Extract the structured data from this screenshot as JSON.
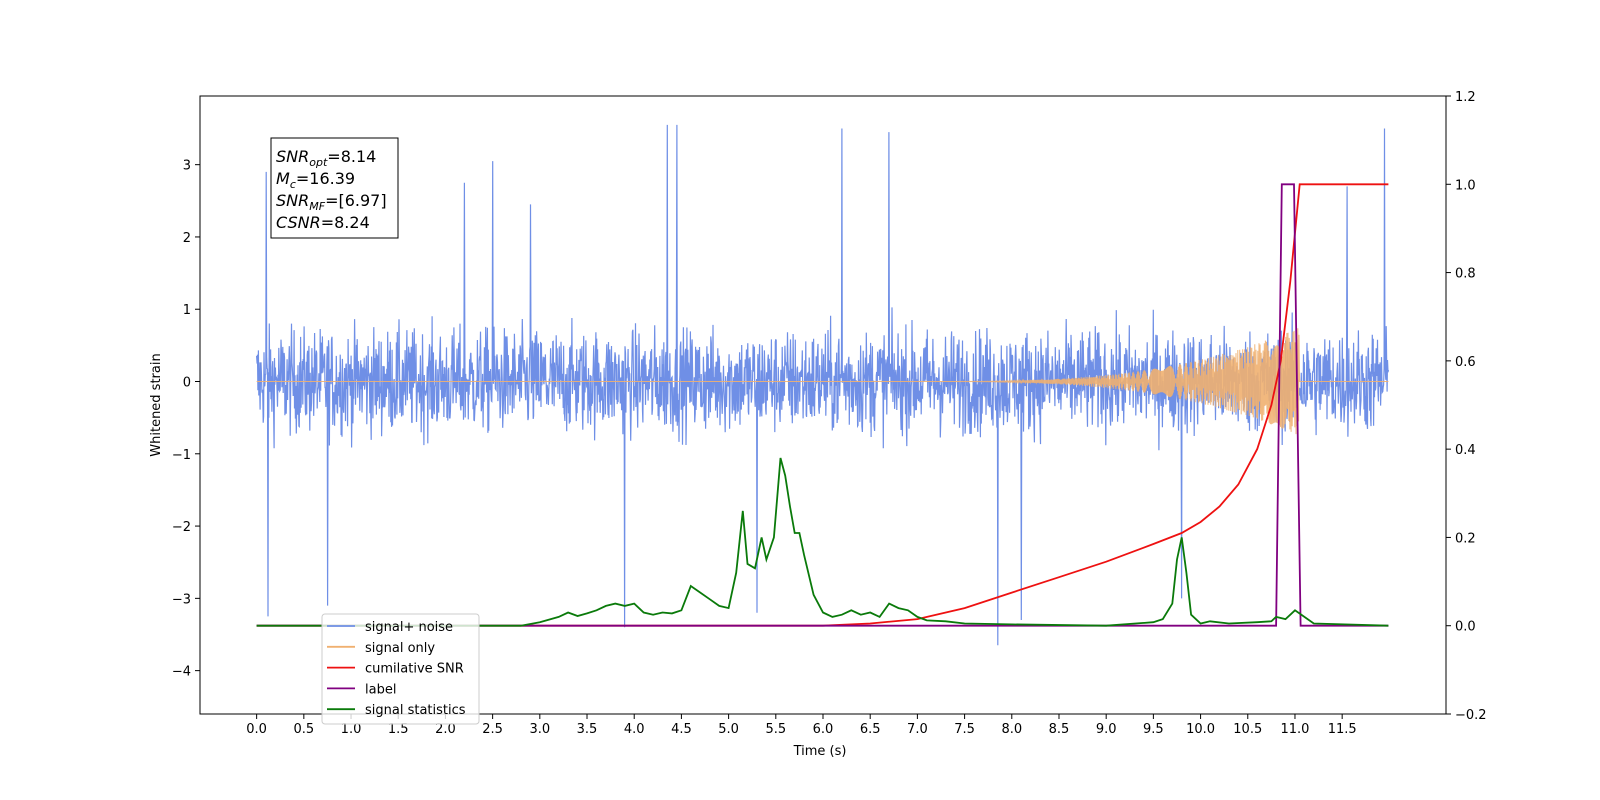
{
  "chart_data": {
    "type": "line",
    "xlabel": "Time (s)",
    "ylabel": "Whitened strain",
    "xlim": [
      -0.6,
      12.6
    ],
    "ylim": [
      -4.6,
      3.95
    ],
    "y2lim": [
      -0.2,
      1.2
    ],
    "x_ticks": [
      0.0,
      0.5,
      1.0,
      1.5,
      2.0,
      2.5,
      3.0,
      3.5,
      4.0,
      4.5,
      5.0,
      5.5,
      6.0,
      6.5,
      7.0,
      7.5,
      8.0,
      8.5,
      9.0,
      9.5,
      10.0,
      10.5,
      11.0,
      11.5
    ],
    "x_tick_labels": [
      "0.0",
      "0.5",
      "1.0",
      "1.5",
      "2.0",
      "2.5",
      "3.0",
      "3.5",
      "4.0",
      "4.5",
      "5.0",
      "5.5",
      "6.0",
      "6.5",
      "7.0",
      "7.5",
      "8.0",
      "8.5",
      "9.0",
      "9.5",
      "10.0",
      "10.5",
      "11.0",
      "11.5"
    ],
    "y_ticks": [
      3,
      2,
      1,
      0,
      -1,
      -2,
      -3,
      -4
    ],
    "y_tick_labels": [
      "3",
      "2",
      "1",
      "0",
      "−1",
      "−2",
      "−3",
      "−4"
    ],
    "y2_ticks": [
      1.2,
      1.0,
      0.8,
      0.6,
      0.4,
      0.2,
      0.0,
      -0.2
    ],
    "y2_tick_labels": [
      "1.2",
      "1.0",
      "0.8",
      "0.6",
      "0.4",
      "0.2",
      "0.0",
      "−0.2"
    ],
    "grid": false,
    "legend_position": "lower-left",
    "annotation": {
      "lines": [
        {
          "base": "SNR",
          "sub": "opt",
          "value": "=8.14"
        },
        {
          "base": "M",
          "sub": "c",
          "value": "=16.39"
        },
        {
          "base": "SNR",
          "sub": "MF",
          "value": "=[6.97]"
        },
        {
          "base": "CSNR",
          "sub": "",
          "value": "=8.24"
        }
      ]
    },
    "series": [
      {
        "name": "signal+ noise",
        "axis": "left",
        "color": "#6f8fe6",
        "noise_envelope": {
          "x_range": [
            0.0,
            11.99
          ],
          "typical_range": [
            -1.8,
            1.6
          ],
          "spikes": [
            [
              0.1,
              2.9
            ],
            [
              0.12,
              -3.25
            ],
            [
              0.75,
              -3.1
            ],
            [
              2.2,
              2.75
            ],
            [
              2.5,
              3.05
            ],
            [
              2.9,
              2.45
            ],
            [
              3.9,
              -3.4
            ],
            [
              4.35,
              3.55
            ],
            [
              4.45,
              3.55
            ],
            [
              5.3,
              -3.2
            ],
            [
              6.2,
              3.5
            ],
            [
              6.7,
              3.45
            ],
            [
              7.85,
              -3.65
            ],
            [
              8.1,
              -3.3
            ],
            [
              9.8,
              -3.0
            ],
            [
              11.55,
              2.7
            ],
            [
              11.95,
              3.5
            ]
          ]
        }
      },
      {
        "name": "signal only",
        "axis": "left",
        "color": "#f0b070",
        "chirp": {
          "start": 7.0,
          "end": 11.05,
          "max_amplitude": 0.75
        }
      },
      {
        "name": "cumilative SNR",
        "axis": "right",
        "color": "#ee1111",
        "x": [
          0.0,
          6.0,
          6.5,
          7.0,
          7.5,
          8.0,
          8.5,
          9.0,
          9.5,
          9.8,
          10.0,
          10.2,
          10.4,
          10.6,
          10.75,
          10.85,
          10.95,
          11.05,
          11.99
        ],
        "y": [
          0.0,
          0.0,
          0.005,
          0.015,
          0.04,
          0.075,
          0.11,
          0.145,
          0.185,
          0.21,
          0.235,
          0.27,
          0.32,
          0.4,
          0.5,
          0.6,
          0.78,
          1.0,
          1.0
        ]
      },
      {
        "name": "label",
        "axis": "right",
        "color": "#800080",
        "x": [
          0.0,
          10.8,
          10.86,
          10.99,
          11.06,
          11.99
        ],
        "y": [
          0.0,
          0.0,
          1.0,
          1.0,
          0.0,
          0.0
        ]
      },
      {
        "name": "signal statistics",
        "axis": "right",
        "color": "#0a7a0a",
        "x": [
          0.0,
          2.8,
          3.0,
          3.2,
          3.3,
          3.4,
          3.5,
          3.6,
          3.7,
          3.8,
          3.9,
          4.0,
          4.1,
          4.2,
          4.3,
          4.4,
          4.5,
          4.6,
          4.7,
          4.8,
          4.9,
          5.0,
          5.08,
          5.15,
          5.2,
          5.28,
          5.35,
          5.4,
          5.48,
          5.55,
          5.6,
          5.65,
          5.7,
          5.75,
          5.8,
          5.9,
          6.0,
          6.1,
          6.2,
          6.3,
          6.4,
          6.5,
          6.6,
          6.7,
          6.8,
          6.9,
          7.0,
          7.1,
          7.3,
          7.5,
          8.0,
          9.0,
          9.5,
          9.6,
          9.7,
          9.75,
          9.8,
          9.85,
          9.9,
          10.0,
          10.1,
          10.3,
          10.6,
          10.75,
          10.8,
          10.9,
          11.0,
          11.1,
          11.2,
          11.99
        ],
        "y": [
          0.0,
          0.0,
          0.008,
          0.02,
          0.03,
          0.022,
          0.028,
          0.035,
          0.045,
          0.05,
          0.045,
          0.05,
          0.03,
          0.025,
          0.03,
          0.028,
          0.035,
          0.09,
          0.075,
          0.06,
          0.045,
          0.04,
          0.12,
          0.26,
          0.14,
          0.13,
          0.2,
          0.15,
          0.2,
          0.38,
          0.34,
          0.27,
          0.21,
          0.21,
          0.16,
          0.07,
          0.03,
          0.02,
          0.025,
          0.035,
          0.025,
          0.03,
          0.02,
          0.05,
          0.04,
          0.035,
          0.02,
          0.012,
          0.01,
          0.005,
          0.003,
          0.0,
          0.008,
          0.015,
          0.05,
          0.15,
          0.2,
          0.12,
          0.025,
          0.005,
          0.01,
          0.005,
          0.008,
          0.01,
          0.02,
          0.015,
          0.035,
          0.02,
          0.005,
          0.0
        ]
      }
    ]
  }
}
